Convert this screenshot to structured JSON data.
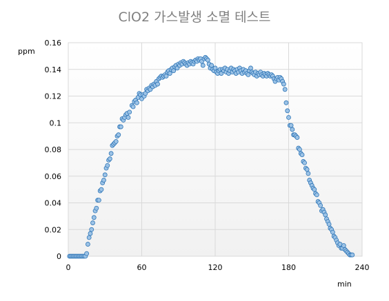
{
  "chart_data": {
    "type": "scatter",
    "title": "ClO2  가스발생 소멸 테스트",
    "xlabel": "min",
    "ylabel": "ppm",
    "xlim": [
      0,
      240
    ],
    "ylim": [
      0,
      0.16
    ],
    "x_ticks": [
      "0",
      "60",
      "120",
      "180",
      "240"
    ],
    "y_ticks": [
      "0",
      "0.02",
      "0.04",
      "0.06",
      "0.08",
      "0.1",
      "0.12",
      "0.14",
      "0.16"
    ],
    "grid": true,
    "legend": "none",
    "colors": {
      "marker_fill": "#9dc3e6",
      "marker_edge": "#2e75b6",
      "grid": "#d9d9d9",
      "title": "#7f7f7f"
    },
    "series": [
      {
        "points": [
          [
            1,
            0
          ],
          [
            2,
            0
          ],
          [
            3,
            0
          ],
          [
            4,
            0
          ],
          [
            5,
            0
          ],
          [
            6,
            0
          ],
          [
            7,
            0
          ],
          [
            8,
            0
          ],
          [
            9,
            0
          ],
          [
            10,
            0
          ],
          [
            11,
            0
          ],
          [
            12,
            0
          ],
          [
            13,
            0
          ],
          [
            14,
            0
          ],
          [
            15,
            0.002
          ],
          [
            16,
            0.009
          ],
          [
            17,
            0.014
          ],
          [
            18,
            0.017
          ],
          [
            19,
            0.02
          ],
          [
            20,
            0.025
          ],
          [
            21,
            0.029
          ],
          [
            22,
            0.034
          ],
          [
            23,
            0.036
          ],
          [
            24,
            0.042
          ],
          [
            25,
            0.042
          ],
          [
            26,
            0.049
          ],
          [
            27,
            0.05
          ],
          [
            28,
            0.055
          ],
          [
            29,
            0.057
          ],
          [
            30,
            0.061
          ],
          [
            31,
            0.066
          ],
          [
            32,
            0.068
          ],
          [
            33,
            0.072
          ],
          [
            34,
            0.073
          ],
          [
            35,
            0.077
          ],
          [
            36,
            0.083
          ],
          [
            37,
            0.084
          ],
          [
            38,
            0.085
          ],
          [
            39,
            0.086
          ],
          [
            40,
            0.09
          ],
          [
            41,
            0.091
          ],
          [
            42,
            0.097
          ],
          [
            43,
            0.097
          ],
          [
            44,
            0.103
          ],
          [
            45,
            0.102
          ],
          [
            46,
            0.104
          ],
          [
            47,
            0.106
          ],
          [
            48,
            0.107
          ],
          [
            49,
            0.104
          ],
          [
            50,
            0.108
          ],
          [
            52,
            0.113
          ],
          [
            53,
            0.112
          ],
          [
            54,
            0.116
          ],
          [
            55,
            0.117
          ],
          [
            56,
            0.115
          ],
          [
            57,
            0.119
          ],
          [
            58,
            0.122
          ],
          [
            59,
            0.121
          ],
          [
            60,
            0.118
          ],
          [
            61,
            0.121
          ],
          [
            62,
            0.12
          ],
          [
            63,
            0.122
          ],
          [
            64,
            0.125
          ],
          [
            65,
            0.124
          ],
          [
            66,
            0.126
          ],
          [
            67,
            0.125
          ],
          [
            68,
            0.128
          ],
          [
            69,
            0.127
          ],
          [
            70,
            0.129
          ],
          [
            71,
            0.128
          ],
          [
            72,
            0.131
          ],
          [
            73,
            0.129
          ],
          [
            74,
            0.133
          ],
          [
            75,
            0.134
          ],
          [
            76,
            0.135
          ],
          [
            77,
            0.134
          ],
          [
            78,
            0.135
          ],
          [
            79,
            0.136
          ],
          [
            80,
            0.135
          ],
          [
            81,
            0.138
          ],
          [
            82,
            0.139
          ],
          [
            83,
            0.137
          ],
          [
            84,
            0.14
          ],
          [
            85,
            0.141
          ],
          [
            86,
            0.139
          ],
          [
            87,
            0.142
          ],
          [
            88,
            0.143
          ],
          [
            89,
            0.141
          ],
          [
            90,
            0.144
          ],
          [
            91,
            0.143
          ],
          [
            92,
            0.145
          ],
          [
            93,
            0.144
          ],
          [
            94,
            0.146
          ],
          [
            95,
            0.145
          ],
          [
            96,
            0.144
          ],
          [
            97,
            0.143
          ],
          [
            98,
            0.145
          ],
          [
            99,
            0.144
          ],
          [
            100,
            0.146
          ],
          [
            101,
            0.145
          ],
          [
            102,
            0.144
          ],
          [
            103,
            0.146
          ],
          [
            104,
            0.147
          ],
          [
            105,
            0.146
          ],
          [
            106,
            0.148
          ],
          [
            107,
            0.147
          ],
          [
            108,
            0.148
          ],
          [
            109,
            0.146
          ],
          [
            110,
            0.143
          ],
          [
            111,
            0.148
          ],
          [
            112,
            0.149
          ],
          [
            113,
            0.148
          ],
          [
            114,
            0.147
          ],
          [
            115,
            0.144
          ],
          [
            116,
            0.141
          ],
          [
            117,
            0.143
          ],
          [
            118,
            0.14
          ],
          [
            119,
            0.139
          ],
          [
            120,
            0.141
          ],
          [
            121,
            0.138
          ],
          [
            122,
            0.137
          ],
          [
            123,
            0.139
          ],
          [
            124,
            0.14
          ],
          [
            125,
            0.137
          ],
          [
            126,
            0.14
          ],
          [
            127,
            0.139
          ],
          [
            128,
            0.141
          ],
          [
            129,
            0.138
          ],
          [
            130,
            0.14
          ],
          [
            131,
            0.137
          ],
          [
            132,
            0.139
          ],
          [
            133,
            0.141
          ],
          [
            134,
            0.138
          ],
          [
            135,
            0.14
          ],
          [
            136,
            0.139
          ],
          [
            137,
            0.137
          ],
          [
            138,
            0.14
          ],
          [
            139,
            0.138
          ],
          [
            140,
            0.141
          ],
          [
            141,
            0.139
          ],
          [
            142,
            0.137
          ],
          [
            143,
            0.14
          ],
          [
            144,
            0.138
          ],
          [
            145,
            0.139
          ],
          [
            146,
            0.137
          ],
          [
            147,
            0.136
          ],
          [
            148,
            0.139
          ],
          [
            149,
            0.141
          ],
          [
            150,
            0.138
          ],
          [
            151,
            0.137
          ],
          [
            152,
            0.136
          ],
          [
            153,
            0.138
          ],
          [
            154,
            0.135
          ],
          [
            155,
            0.137
          ],
          [
            156,
            0.136
          ],
          [
            157,
            0.138
          ],
          [
            158,
            0.136
          ],
          [
            159,
            0.135
          ],
          [
            160,
            0.137
          ],
          [
            161,
            0.136
          ],
          [
            162,
            0.135
          ],
          [
            163,
            0.137
          ],
          [
            164,
            0.136
          ],
          [
            165,
            0.135
          ],
          [
            166,
            0.136
          ],
          [
            167,
            0.135
          ],
          [
            168,
            0.133
          ],
          [
            169,
            0.131
          ],
          [
            170,
            0.133
          ],
          [
            171,
            0.134
          ],
          [
            172,
            0.132
          ],
          [
            173,
            0.134
          ],
          [
            174,
            0.133
          ],
          [
            175,
            0.131
          ],
          [
            176,
            0.129
          ],
          [
            177,
            0.125
          ],
          [
            178,
            0.115
          ],
          [
            179,
            0.109
          ],
          [
            180,
            0.104
          ],
          [
            181,
            0.098
          ],
          [
            182,
            0.098
          ],
          [
            183,
            0.095
          ],
          [
            184,
            0.091
          ],
          [
            185,
            0.091
          ],
          [
            186,
            0.09
          ],
          [
            187,
            0.089
          ],
          [
            188,
            0.081
          ],
          [
            189,
            0.08
          ],
          [
            190,
            0.077
          ],
          [
            191,
            0.076
          ],
          [
            192,
            0.071
          ],
          [
            193,
            0.07
          ],
          [
            194,
            0.066
          ],
          [
            195,
            0.065
          ],
          [
            196,
            0.062
          ],
          [
            197,
            0.057
          ],
          [
            198,
            0.055
          ],
          [
            199,
            0.053
          ],
          [
            200,
            0.051
          ],
          [
            201,
            0.05
          ],
          [
            202,
            0.047
          ],
          [
            203,
            0.046
          ],
          [
            204,
            0.041
          ],
          [
            205,
            0.04
          ],
          [
            206,
            0.038
          ],
          [
            207,
            0.034
          ],
          [
            208,
            0.035
          ],
          [
            209,
            0.033
          ],
          [
            210,
            0.031
          ],
          [
            211,
            0.028
          ],
          [
            212,
            0.026
          ],
          [
            213,
            0.024
          ],
          [
            214,
            0.021
          ],
          [
            215,
            0.02
          ],
          [
            216,
            0.018
          ],
          [
            217,
            0.015
          ],
          [
            218,
            0.014
          ],
          [
            219,
            0.012
          ],
          [
            220,
            0.01
          ],
          [
            221,
            0.008
          ],
          [
            222,
            0.009
          ],
          [
            223,
            0.006
          ],
          [
            224,
            0.006
          ],
          [
            225,
            0.008
          ],
          [
            226,
            0.005
          ],
          [
            227,
            0.004
          ],
          [
            228,
            0.003
          ],
          [
            229,
            0.002
          ],
          [
            230,
            0.001
          ],
          [
            231,
            0.001
          ],
          [
            232,
            0.001
          ]
        ]
      }
    ]
  }
}
